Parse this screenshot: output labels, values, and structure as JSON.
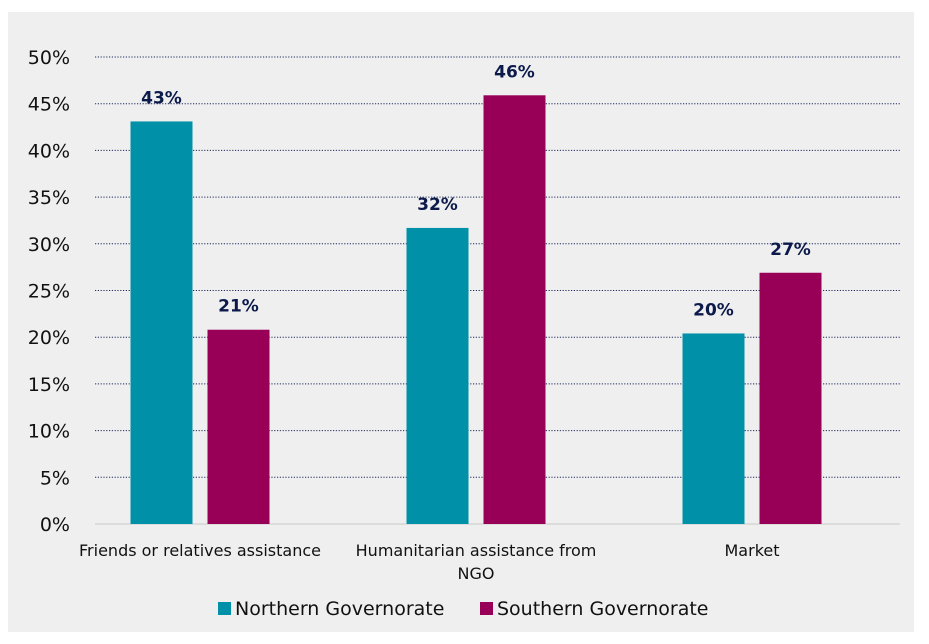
{
  "chart_data": {
    "type": "bar",
    "categories": [
      "Friends or relatives assistance",
      "Humanitarian assistance from NGO",
      "Market"
    ],
    "category_lines": [
      [
        "Friends or relatives assistance"
      ],
      [
        "Humanitarian assistance from",
        "NGO"
      ],
      [
        "Market"
      ]
    ],
    "series": [
      {
        "name": "Northern Governorate",
        "color": "#0091a8",
        "values": [
          43.1,
          31.7,
          20.4
        ],
        "labels": [
          "43%",
          "32%",
          "20%"
        ]
      },
      {
        "name": "Southern Governorate",
        "color": "#980058",
        "values": [
          20.8,
          45.9,
          26.9
        ],
        "labels": [
          "21%",
          "46%",
          "27%"
        ]
      }
    ],
    "ylim": [
      0,
      50
    ],
    "yticks": [
      0,
      5,
      10,
      15,
      20,
      25,
      30,
      35,
      40,
      45,
      50
    ],
    "ytick_labels": [
      "0%",
      "5%",
      "10%",
      "15%",
      "20%",
      "25%",
      "30%",
      "35%",
      "40%",
      "45%",
      "50%"
    ],
    "grid": true,
    "legend_position": "bottom",
    "title": "",
    "xlabel": "",
    "ylabel": ""
  }
}
